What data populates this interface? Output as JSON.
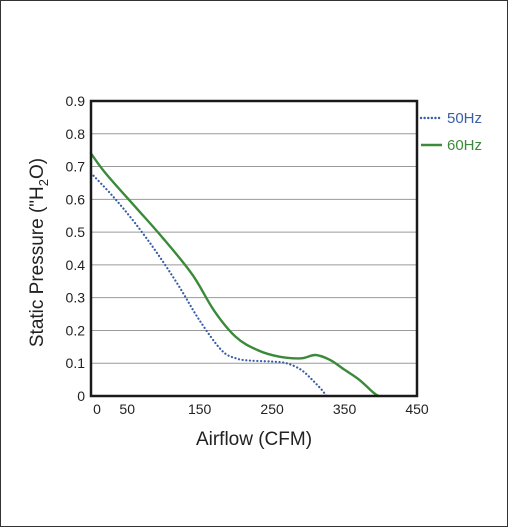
{
  "chart_data": {
    "type": "line",
    "title": "",
    "xlabel": "Airflow (CFM)",
    "ylabel_parts": {
      "prefix": "Static Pressure (\"H",
      "subscript": "2",
      "suffix": "O)"
    },
    "xlim": [
      0,
      450
    ],
    "ylim": [
      0,
      0.9
    ],
    "x_ticks": [
      "0",
      "50",
      "150",
      "250",
      "350",
      "450"
    ],
    "x_tick_values": [
      0,
      50,
      150,
      250,
      350,
      450
    ],
    "y_ticks": [
      "0",
      "0.1",
      "0.2",
      "0.3",
      "0.4",
      "0.5",
      "0.6",
      "0.7",
      "0.8",
      "0.9"
    ],
    "y_tick_values": [
      0,
      0.1,
      0.2,
      0.3,
      0.4,
      0.5,
      0.6,
      0.7,
      0.8,
      0.9
    ],
    "grid": "horizontal",
    "legend_position": "right-top",
    "series": [
      {
        "name": "50Hz",
        "color": "#3a5fa8",
        "style": "dotted",
        "x": [
          0,
          30,
          60,
          90,
          120,
          150,
          180,
          200,
          220,
          250,
          270,
          290,
          305,
          318,
          325
        ],
        "y": [
          0.68,
          0.61,
          0.53,
          0.44,
          0.34,
          0.23,
          0.14,
          0.115,
          0.108,
          0.105,
          0.1,
          0.08,
          0.05,
          0.02,
          0.0
        ]
      },
      {
        "name": "60Hz",
        "color": "#3a8a3a",
        "style": "solid",
        "x": [
          0,
          20,
          60,
          100,
          140,
          170,
          200,
          230,
          260,
          290,
          310,
          330,
          350,
          370,
          390,
          397
        ],
        "y": [
          0.74,
          0.68,
          0.58,
          0.48,
          0.37,
          0.26,
          0.18,
          0.14,
          0.12,
          0.115,
          0.125,
          0.11,
          0.08,
          0.05,
          0.01,
          0.0
        ]
      }
    ]
  }
}
